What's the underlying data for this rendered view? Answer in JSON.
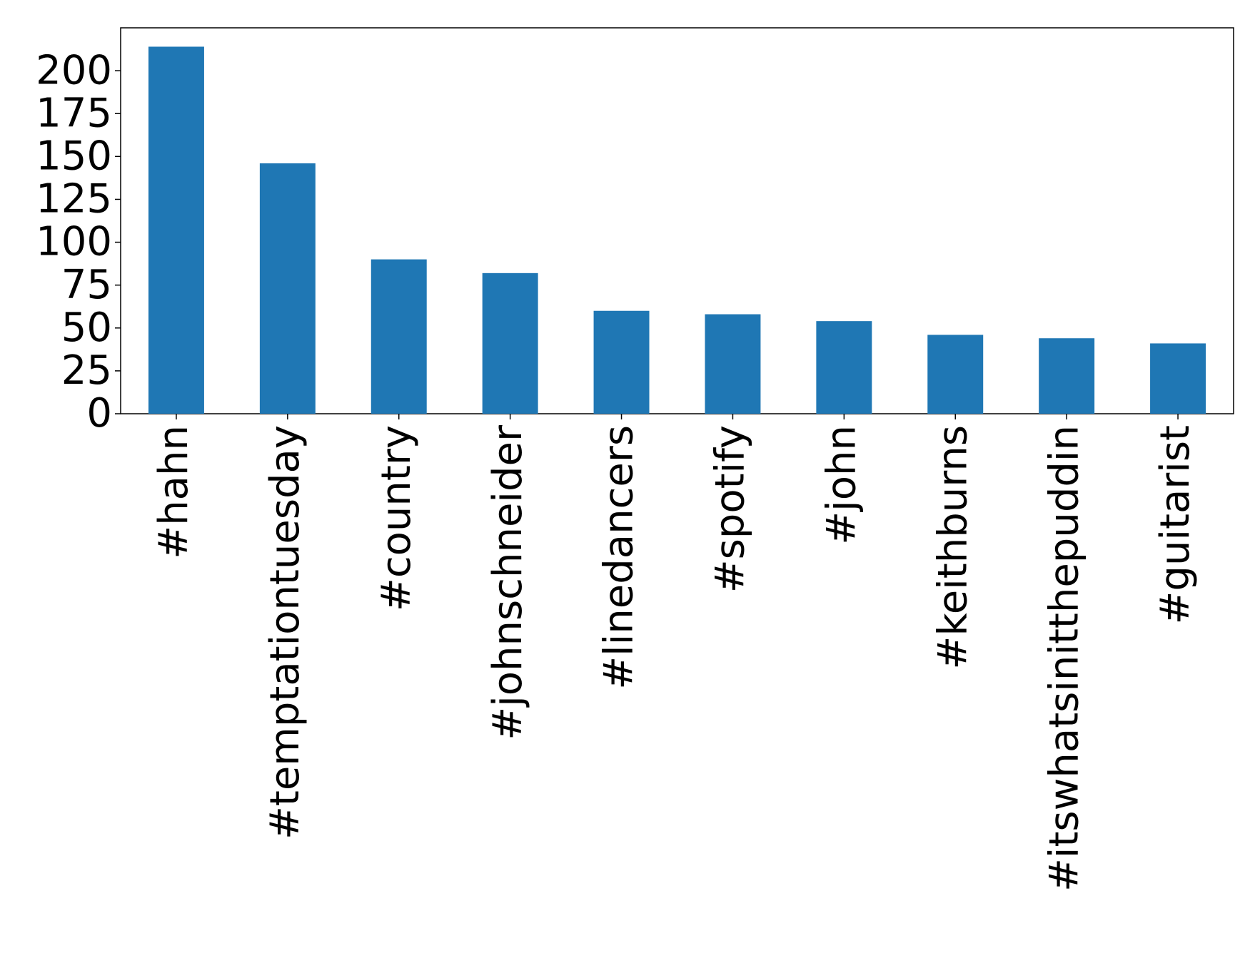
{
  "chart_data": {
    "type": "bar",
    "categories": [
      "#hahn",
      "#temptationtuesday",
      "#country",
      "#johnschneider",
      "#linedancers",
      "#spotify",
      "#john",
      "#keithburns",
      "#itswhatsinitthepuddin",
      "#guitarist"
    ],
    "values": [
      214,
      146,
      90,
      82,
      60,
      58,
      54,
      46,
      44,
      41
    ],
    "color": "#1f77b4",
    "ylim": [
      0,
      225
    ],
    "yticks": [
      0,
      25,
      50,
      75,
      100,
      125,
      150,
      175,
      200
    ],
    "grid": false
  }
}
